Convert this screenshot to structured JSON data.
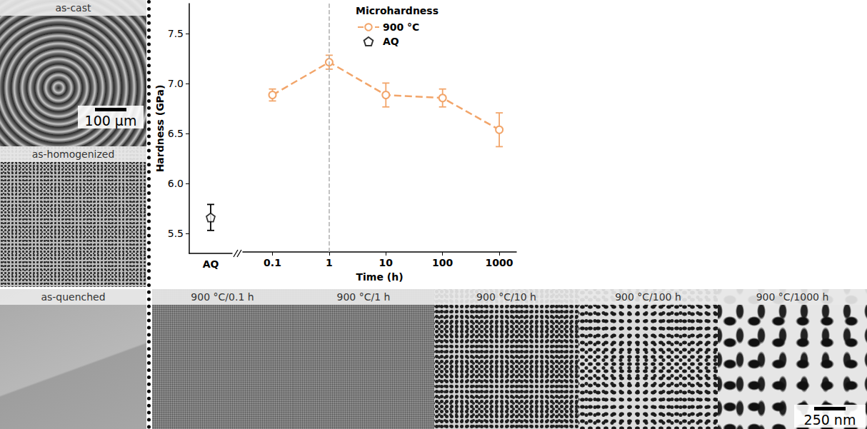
{
  "chart_data": {
    "type": "line",
    "x_label": "Time (h)",
    "y_label": "Hardness (GPa)",
    "legend_title": "Microhardness",
    "legend": "upper right",
    "log": "x",
    "xlim": [
      0.03,
      2000
    ],
    "xticks": [
      0.1,
      1,
      10,
      100,
      1000
    ],
    "ylim": [
      5.3,
      7.8
    ],
    "yticks": [
      5.5,
      {
        "value": 6,
        "label": "6.0"
      },
      6.5,
      {
        "value": 7,
        "label": "7.0"
      },
      7.5
    ],
    "grid": false,
    "series": [
      {
        "name": "900 °C",
        "type": "line",
        "color": "#f2a56a",
        "marker": "circle",
        "line_style": "dashed",
        "x": [
          0.1,
          1,
          10,
          100,
          1000
        ],
        "values": [
          6.88,
          7.21,
          6.88,
          6.85,
          6.53
        ],
        "errors": [
          0.06,
          0.07,
          0.12,
          0.09,
          0.17
        ]
      },
      {
        "name": "AQ",
        "type": "scatter",
        "color": "#000000",
        "marker": "pentagon",
        "categories": [
          "AQ"
        ],
        "values": [
          5.66
        ],
        "errors": [
          0.13
        ]
      }
    ],
    "reference_lines": [
      {
        "x": 1,
        "color": "#b0b0b0",
        "line_style": "dashed"
      }
    ]
  },
  "panels": [
    {
      "label": "as-cast",
      "scale_bar": "100 µm"
    },
    {
      "label": "as-homogenized"
    },
    {
      "label": "as-quenched"
    },
    {
      "label": "900 °C/0.1 h"
    },
    {
      "label": "900 °C/1 h"
    },
    {
      "label": "900 °C/10 h"
    },
    {
      "label": "900 °C/100 h"
    },
    {
      "label": "900 °C/1000 h",
      "scale_bar": "250 nm"
    }
  ]
}
